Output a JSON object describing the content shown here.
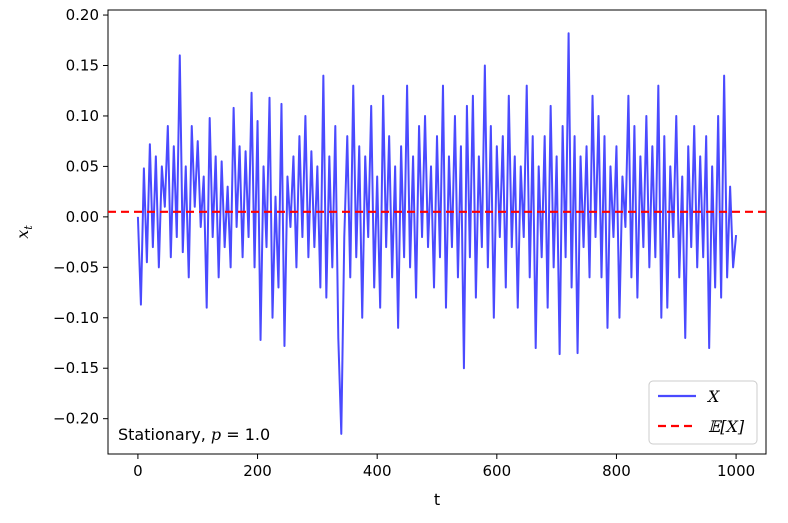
{
  "chart_data": {
    "type": "line",
    "title": "",
    "xlabel": "t",
    "ylabel": "x_t",
    "ylabel_main": "x",
    "ylabel_sub": "t",
    "xlim": [
      -50,
      1050
    ],
    "ylim": [
      -0.235,
      0.205
    ],
    "xticks": [
      0,
      200,
      400,
      600,
      800,
      1000
    ],
    "xtick_labels": [
      "0",
      "200",
      "400",
      "600",
      "800",
      "1000"
    ],
    "yticks": [
      -0.2,
      -0.15,
      -0.1,
      -0.05,
      0.0,
      0.05,
      0.1,
      0.15,
      0.2
    ],
    "ytick_labels": [
      "−0.20",
      "−0.15",
      "−0.10",
      "−0.05",
      "0.00",
      "0.05",
      "0.10",
      "0.15",
      "0.20"
    ],
    "grid": false,
    "legend_position": "bottom-right",
    "annotation": "Stationary, p = 1.0",
    "annotation_prefix": "Stationary, ",
    "annotation_var": "p",
    "annotation_suffix": " = 1.0",
    "series": [
      {
        "name": "X",
        "style": "solid",
        "color": "#4a4aff",
        "x": [
          0,
          5,
          10,
          15,
          20,
          25,
          30,
          35,
          40,
          45,
          50,
          55,
          60,
          65,
          70,
          75,
          80,
          85,
          90,
          95,
          100,
          105,
          110,
          115,
          120,
          125,
          130,
          135,
          140,
          145,
          150,
          155,
          160,
          165,
          170,
          175,
          180,
          185,
          190,
          195,
          200,
          205,
          210,
          215,
          220,
          225,
          230,
          235,
          240,
          245,
          250,
          255,
          260,
          265,
          270,
          275,
          280,
          285,
          290,
          295,
          300,
          305,
          310,
          315,
          320,
          325,
          330,
          335,
          340,
          345,
          350,
          355,
          360,
          365,
          370,
          375,
          380,
          385,
          390,
          395,
          400,
          405,
          410,
          415,
          420,
          425,
          430,
          435,
          440,
          445,
          450,
          455,
          460,
          465,
          470,
          475,
          480,
          485,
          490,
          495,
          500,
          505,
          510,
          515,
          520,
          525,
          530,
          535,
          540,
          545,
          550,
          555,
          560,
          565,
          570,
          575,
          580,
          585,
          590,
          595,
          600,
          605,
          610,
          615,
          620,
          625,
          630,
          635,
          640,
          645,
          650,
          655,
          660,
          665,
          670,
          675,
          680,
          685,
          690,
          695,
          700,
          705,
          710,
          715,
          720,
          725,
          730,
          735,
          740,
          745,
          750,
          755,
          760,
          765,
          770,
          775,
          780,
          785,
          790,
          795,
          800,
          805,
          810,
          815,
          820,
          825,
          830,
          835,
          840,
          845,
          850,
          855,
          860,
          865,
          870,
          875,
          880,
          885,
          890,
          895,
          900,
          905,
          910,
          915,
          920,
          925,
          930,
          935,
          940,
          945,
          950,
          955,
          960,
          965,
          970,
          975,
          980,
          985,
          990,
          995,
          1000
        ],
        "values": [
          0.0,
          -0.087,
          0.048,
          -0.045,
          0.072,
          -0.03,
          0.06,
          -0.05,
          0.05,
          0.01,
          0.09,
          -0.04,
          0.07,
          -0.02,
          0.16,
          -0.035,
          0.05,
          -0.06,
          0.09,
          0.01,
          0.075,
          -0.01,
          0.04,
          -0.09,
          0.098,
          -0.02,
          0.06,
          -0.06,
          0.055,
          -0.03,
          0.03,
          -0.05,
          0.108,
          -0.01,
          0.07,
          -0.04,
          0.065,
          -0.02,
          0.123,
          -0.05,
          0.095,
          -0.122,
          0.05,
          -0.03,
          0.118,
          -0.1,
          0.02,
          -0.07,
          0.112,
          -0.128,
          0.04,
          -0.01,
          0.06,
          -0.05,
          0.08,
          -0.02,
          0.1,
          -0.04,
          0.065,
          -0.03,
          0.05,
          -0.07,
          0.14,
          -0.08,
          0.06,
          -0.05,
          0.09,
          -0.12,
          -0.215,
          -0.02,
          0.08,
          -0.06,
          0.13,
          -0.04,
          0.07,
          -0.1,
          0.06,
          -0.02,
          0.11,
          -0.07,
          0.04,
          -0.09,
          0.12,
          -0.03,
          0.08,
          -0.06,
          0.05,
          -0.11,
          0.07,
          -0.04,
          0.13,
          -0.05,
          0.06,
          -0.08,
          0.09,
          -0.02,
          0.1,
          -0.03,
          0.05,
          -0.07,
          0.08,
          -0.04,
          0.13,
          -0.09,
          0.06,
          -0.03,
          0.1,
          -0.06,
          0.07,
          -0.15,
          0.11,
          -0.04,
          0.12,
          -0.08,
          0.06,
          -0.03,
          0.15,
          -0.05,
          0.09,
          -0.1,
          0.07,
          -0.02,
          0.08,
          -0.07,
          0.12,
          -0.03,
          0.06,
          -0.09,
          0.05,
          -0.02,
          0.13,
          -0.06,
          0.08,
          -0.13,
          0.05,
          -0.04,
          0.08,
          -0.09,
          0.11,
          -0.05,
          0.06,
          -0.136,
          0.09,
          -0.04,
          0.182,
          -0.07,
          0.08,
          -0.135,
          0.06,
          -0.03,
          0.07,
          -0.06,
          0.12,
          -0.02,
          0.1,
          -0.06,
          0.08,
          -0.11,
          0.05,
          -0.02,
          0.07,
          -0.1,
          0.04,
          -0.01,
          0.12,
          -0.06,
          0.09,
          -0.08,
          0.06,
          -0.03,
          0.1,
          -0.05,
          0.07,
          -0.04,
          0.13,
          -0.1,
          0.08,
          -0.09,
          0.05,
          -0.02,
          0.1,
          -0.06,
          0.04,
          -0.12,
          0.07,
          -0.03,
          0.09,
          -0.05,
          0.06,
          -0.04,
          0.08,
          -0.13,
          0.05,
          -0.07,
          0.1,
          -0.08,
          0.14,
          -0.06,
          0.03,
          -0.05,
          -0.018
        ]
      },
      {
        "name": "𝔼[X]",
        "style": "dashed",
        "color": "#ff0000",
        "x": [
          -50,
          1050
        ],
        "values": [
          0.005,
          0.005
        ]
      }
    ]
  }
}
